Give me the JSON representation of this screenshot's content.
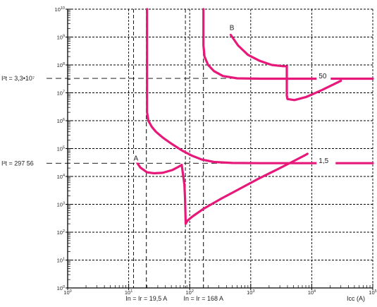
{
  "chart_data": {
    "type": "line",
    "title": "",
    "xlabel": "Icc (A)",
    "ylabel": "",
    "x_scale": "log",
    "y_scale": "log",
    "xlim": [
      1,
      100000
    ],
    "ylim": [
      1,
      10000000000.0
    ],
    "grid": true,
    "x_ticks": [
      {
        "v": 1,
        "b": "10",
        "e": "0"
      },
      {
        "v": 10,
        "b": "10",
        "e": "1"
      },
      {
        "v": 100,
        "b": "10",
        "e": "2"
      },
      {
        "v": 1000,
        "b": "10",
        "e": "3"
      },
      {
        "v": 10000,
        "b": "10",
        "e": "4"
      },
      {
        "v": 100000,
        "b": "10",
        "e": "5"
      }
    ],
    "y_ticks": [
      {
        "v": 1,
        "b": "10",
        "e": "0"
      },
      {
        "v": 10,
        "b": "10",
        "e": "1"
      },
      {
        "v": 100,
        "b": "10",
        "e": "2"
      },
      {
        "v": 1000,
        "b": "10",
        "e": "3"
      },
      {
        "v": 10000,
        "b": "10",
        "e": "4"
      },
      {
        "v": 100000,
        "b": "10",
        "e": "5"
      },
      {
        "v": 1000000,
        "b": "10",
        "e": "6"
      },
      {
        "v": 10000000,
        "b": "10",
        "e": "7"
      },
      {
        "v": 100000000,
        "b": "10",
        "e": "8"
      },
      {
        "v": 1000000000,
        "b": "10",
        "e": "9"
      },
      {
        "v": 10000000000,
        "b": "10",
        "e": "10"
      }
    ],
    "h_refs": [
      {
        "label": "I²t = 3,3•10⁷",
        "y": 33000000
      },
      {
        "label": "I²t = 297 56",
        "y": 29756
      }
    ],
    "v_refs": [
      {
        "label": "In = Ir = 19,5 A",
        "x": 19.5
      },
      {
        "label": "In = Ir = 168 A",
        "x": 168
      }
    ],
    "extra_dashed_x": [
      12,
      85
    ],
    "series": [
      {
        "name": "A",
        "color": "#e6197a",
        "points": [
          [
            12.7,
            40000
          ],
          [
            15.5,
            21000
          ],
          [
            20,
            14000
          ],
          [
            26,
            13000
          ],
          [
            36,
            13500
          ],
          [
            52,
            17000
          ],
          [
            65,
            22000
          ],
          [
            74,
            26000
          ],
          [
            82,
            5000
          ],
          [
            84,
            1600
          ],
          [
            86,
            200
          ],
          [
            92,
            260
          ],
          [
            110,
            360
          ],
          [
            170,
            700
          ],
          [
            330,
            1600
          ],
          [
            660,
            3600
          ],
          [
            1300,
            8000
          ],
          [
            2600,
            17000
          ],
          [
            5000,
            35000
          ],
          [
            8000,
            60000
          ],
          [
            8500,
            65000
          ]
        ]
      },
      {
        "name": "1,5",
        "color": "#e6197a",
        "points": [
          [
            20,
            10000000000.0
          ],
          [
            20,
            1000000000.0
          ],
          [
            20,
            100000000
          ],
          [
            20,
            20000000
          ],
          [
            20,
            5000000
          ],
          [
            20,
            2000000
          ],
          [
            21,
            1000000
          ],
          [
            24,
            600000
          ],
          [
            28,
            400000
          ],
          [
            36,
            250000
          ],
          [
            50,
            150000
          ],
          [
            75,
            85000
          ],
          [
            110,
            55000
          ],
          [
            160,
            40000
          ],
          [
            250,
            33000
          ],
          [
            500,
            30500
          ],
          [
            1500,
            30000
          ],
          [
            10000,
            30000
          ],
          [
            70000,
            30000
          ],
          [
            100000,
            30000
          ]
        ]
      },
      {
        "name": "B",
        "color": "#e6197a",
        "points": [
          [
            470,
            1200000000
          ],
          [
            620,
            500000000
          ],
          [
            900,
            230000000
          ],
          [
            1400,
            140000000
          ],
          [
            2200,
            100000000
          ],
          [
            3400,
            90000000
          ],
          [
            3900,
            90000000
          ],
          [
            3900,
            8000000
          ],
          [
            4000,
            6000000
          ],
          [
            5200,
            5500000
          ],
          [
            8000,
            7000000
          ],
          [
            14000,
            12000000
          ],
          [
            30000,
            27000000
          ]
        ]
      },
      {
        "name": "50",
        "color": "#e6197a",
        "points": [
          [
            168,
            10000000000.0
          ],
          [
            168,
            1000000000.0
          ],
          [
            168,
            500000000
          ],
          [
            175,
            200000000
          ],
          [
            200,
            100000000
          ],
          [
            250,
            60000000
          ],
          [
            350,
            40000000
          ],
          [
            600,
            33000000
          ],
          [
            1500,
            32000000
          ],
          [
            5000,
            32000000
          ],
          [
            30000,
            32000000
          ],
          [
            100000,
            32000000
          ]
        ]
      }
    ],
    "curve_labels": [
      {
        "text": "A",
        "x": 12,
        "y": 37000
      },
      {
        "text": "B",
        "x": 450,
        "y": 1800000000
      },
      {
        "text": "50",
        "x": 13000,
        "y": 33000000
      },
      {
        "text": "1,5",
        "x": 13000,
        "y": 30000
      }
    ]
  }
}
